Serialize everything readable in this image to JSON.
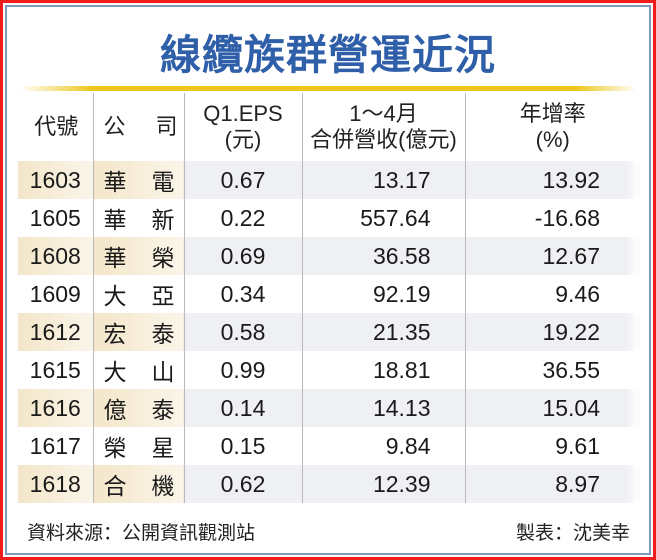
{
  "title": "線纜族群營運近況",
  "table": {
    "headers": {
      "code": "代號",
      "name_1": "公",
      "name_2": "司",
      "eps_line1": "Q1.EPS",
      "eps_line2": "(元)",
      "revenue_line1": "1～4月",
      "revenue_line2": "合併營收(億元)",
      "yoy_line1": "年增率",
      "yoy_line2": "(%)"
    },
    "rows": [
      {
        "code": "1603",
        "name_1": "華",
        "name_2": "電",
        "eps": "0.67",
        "revenue": "13.17",
        "yoy": "13.92"
      },
      {
        "code": "1605",
        "name_1": "華",
        "name_2": "新",
        "eps": "0.22",
        "revenue": "557.64",
        "yoy": "-16.68"
      },
      {
        "code": "1608",
        "name_1": "華",
        "name_2": "榮",
        "eps": "0.69",
        "revenue": "36.58",
        "yoy": "12.67"
      },
      {
        "code": "1609",
        "name_1": "大",
        "name_2": "亞",
        "eps": "0.34",
        "revenue": "92.19",
        "yoy": "9.46"
      },
      {
        "code": "1612",
        "name_1": "宏",
        "name_2": "泰",
        "eps": "0.58",
        "revenue": "21.35",
        "yoy": "19.22"
      },
      {
        "code": "1615",
        "name_1": "大",
        "name_2": "山",
        "eps": "0.99",
        "revenue": "18.81",
        "yoy": "36.55"
      },
      {
        "code": "1616",
        "name_1": "億",
        "name_2": "泰",
        "eps": "0.14",
        "revenue": "14.13",
        "yoy": "15.04"
      },
      {
        "code": "1617",
        "name_1": "榮",
        "name_2": "星",
        "eps": "0.15",
        "revenue": "9.84",
        "yoy": "9.61"
      },
      {
        "code": "1618",
        "name_1": "合",
        "name_2": "機",
        "eps": "0.62",
        "revenue": "12.39",
        "yoy": "8.97"
      }
    ]
  },
  "footer": {
    "source": "資料來源：公開資訊觀測站",
    "author": "製表：沈美幸"
  },
  "colors": {
    "outer_border": "#ee1c1c",
    "inner_border": "#7f9ac0",
    "title": "#2f5fa8",
    "gold_bar": "#ecc619",
    "row_shade_left": "#f3e6c9",
    "row_shade_right": "#eff0f3"
  }
}
